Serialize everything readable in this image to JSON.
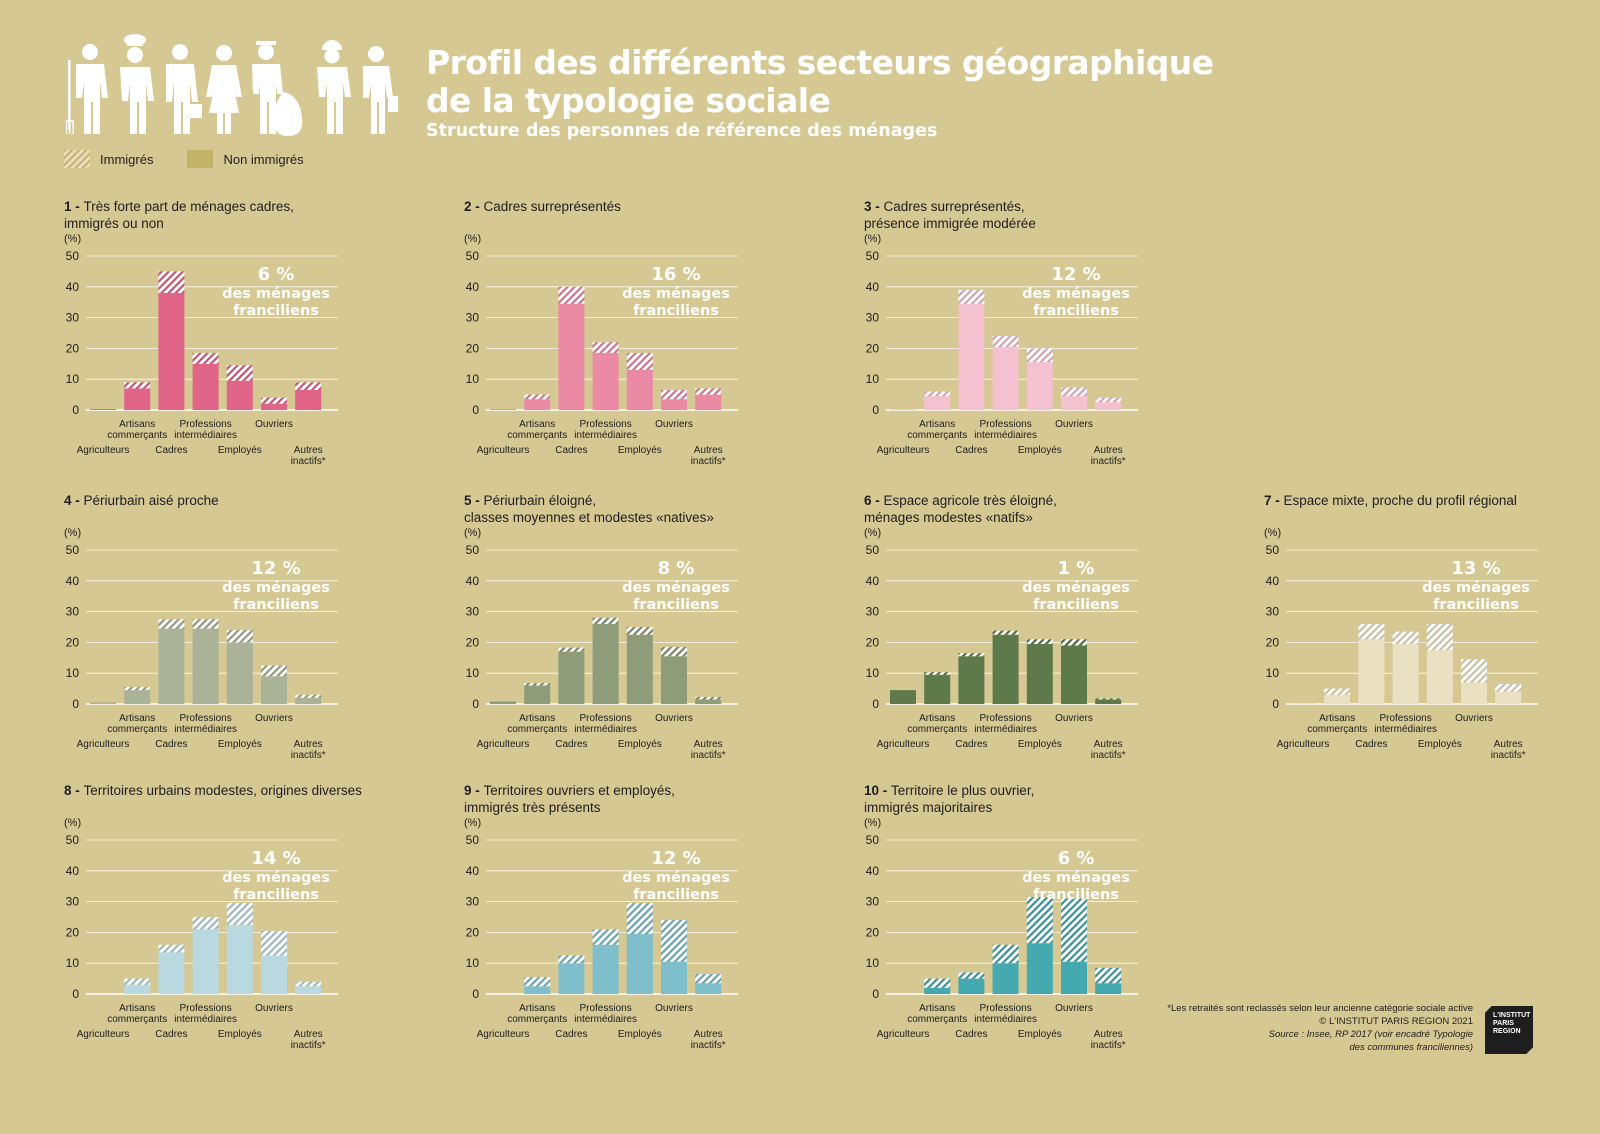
{
  "header": {
    "title_lines": [
      "Profil des différents secteurs géographique",
      "de la typologie sociale"
    ],
    "subtitle": "Structure des personnes de référence des ménages"
  },
  "legend": {
    "immigres": "Immigrés",
    "non_immigres": "Non immigrés"
  },
  "common": {
    "percent_label": "(%)",
    "share_suffix_line1": "des ménages",
    "share_suffix_line2": "franciliens"
  },
  "footer": {
    "note": "*Les retraités sont reclassés selon leur ancienne catégorie sociale active",
    "copyright": "© L'INSTITUT PARIS REGION 2021",
    "source_line1": "Source : Insee, RP 2017 (voir encadré Typologie",
    "source_line2": "des communes franciliennes)",
    "logo_lines": [
      "L'INSTITUT",
      "PARIS",
      "REGION"
    ]
  },
  "chart_data": [
    {
      "type": "bar",
      "stacked": true,
      "id": 1,
      "number": "1 -",
      "title_lines": [
        "Très forte part de ménages cadres,",
        "immigrés ou non"
      ],
      "share": "6 %",
      "color": "#e06487",
      "ylim": [
        0,
        50
      ],
      "yticks": [
        0,
        10,
        20,
        30,
        40,
        50
      ],
      "categories": [
        "Agriculteurs",
        "Artisans commerçants",
        "Cadres",
        "Professions intermédiaires",
        "Employés",
        "Ouvriers",
        "Autres inactifs*"
      ],
      "series": [
        {
          "name": "Non immigrés",
          "values": [
            0.3,
            7,
            38,
            15,
            9.5,
            2,
            6.5
          ]
        },
        {
          "name": "Immigrés",
          "values": [
            0,
            2,
            7,
            3.5,
            5,
            2,
            2.5
          ]
        }
      ]
    },
    {
      "type": "bar",
      "stacked": true,
      "id": 2,
      "number": "2 -",
      "title_lines": [
        "Cadres surreprésentés"
      ],
      "share": "16 %",
      "color": "#ea8aa5",
      "ylim": [
        0,
        50
      ],
      "yticks": [
        0,
        10,
        20,
        30,
        40,
        50
      ],
      "categories": [
        "Agriculteurs",
        "Artisans commerçants",
        "Cadres",
        "Professions intermédiaires",
        "Employés",
        "Ouvriers",
        "Autres inactifs*"
      ],
      "series": [
        {
          "name": "Non immigrés",
          "values": [
            0.3,
            3.5,
            34.5,
            18.5,
            13,
            3.5,
            5
          ]
        },
        {
          "name": "Immigrés",
          "values": [
            0,
            1.5,
            5.5,
            3.5,
            5.5,
            3,
            2
          ]
        }
      ]
    },
    {
      "type": "bar",
      "stacked": true,
      "id": 3,
      "number": "3 -",
      "title_lines": [
        "Cadres surreprésentés,",
        "présence immigrée modérée"
      ],
      "share": "12 %",
      "color": "#f4c1d0",
      "ylim": [
        0,
        50
      ],
      "yticks": [
        0,
        10,
        20,
        30,
        40,
        50
      ],
      "categories": [
        "Agriculteurs",
        "Artisans commerçants",
        "Cadres",
        "Professions intermédiaires",
        "Employés",
        "Ouvriers",
        "Autres inactifs*"
      ],
      "series": [
        {
          "name": "Non immigrés",
          "values": [
            0.3,
            4.5,
            34.5,
            20.5,
            15.5,
            4.5,
            2.5
          ]
        },
        {
          "name": "Immigrés",
          "values": [
            0,
            1.5,
            4.5,
            3.5,
            4.5,
            2.8,
            1.5
          ]
        }
      ]
    },
    {
      "type": "bar",
      "stacked": true,
      "id": 4,
      "number": "4 -",
      "title_lines": [
        "Périurbain aisé proche"
      ],
      "share": "12 %",
      "color": "#aab298",
      "ylim": [
        0,
        50
      ],
      "yticks": [
        0,
        10,
        20,
        30,
        40,
        50
      ],
      "categories": [
        "Agriculteurs",
        "Artisans commerçants",
        "Cadres",
        "Professions intermédiaires",
        "Employés",
        "Ouvriers",
        "Autres inactifs*"
      ],
      "series": [
        {
          "name": "Non immigrés",
          "values": [
            0.5,
            4.5,
            24.5,
            24.5,
            20,
            9,
            2
          ]
        },
        {
          "name": "Immigrés",
          "values": [
            0,
            1,
            3,
            3,
            4,
            3.5,
            1
          ]
        }
      ]
    },
    {
      "type": "bar",
      "stacked": true,
      "id": 5,
      "number": "5 -",
      "title_lines": [
        "Périurbain éloigné,",
        "classes moyennes et modestes «natives»"
      ],
      "share": "8 %",
      "color": "#8e9c7a",
      "ylim": [
        0,
        50
      ],
      "yticks": [
        0,
        10,
        20,
        30,
        40,
        50
      ],
      "categories": [
        "Agriculteurs",
        "Artisans commerçants",
        "Cadres",
        "Professions intermédiaires",
        "Employés",
        "Ouvriers",
        "Autres inactifs*"
      ],
      "series": [
        {
          "name": "Non immigrés",
          "values": [
            0.8,
            6,
            17,
            26,
            22.5,
            15.5,
            1.5
          ]
        },
        {
          "name": "Immigrés",
          "values": [
            0,
            0.8,
            1.3,
            2,
            2.5,
            3,
            0.8
          ]
        }
      ]
    },
    {
      "type": "bar",
      "stacked": true,
      "id": 6,
      "number": "6 -",
      "title_lines": [
        "Espace agricole très éloigné,",
        "ménages modestes «natifs»"
      ],
      "share": "1 %",
      "color": "#5e7a4a",
      "ylim": [
        0,
        50
      ],
      "yticks": [
        0,
        10,
        20,
        30,
        40,
        50
      ],
      "categories": [
        "Agriculteurs",
        "Artisans commerçants",
        "Cadres",
        "Professions intermédiaires",
        "Employés",
        "Ouvriers",
        "Autres inactifs*"
      ],
      "series": [
        {
          "name": "Non immigrés",
          "values": [
            4.5,
            9.5,
            15.5,
            22.5,
            19.5,
            19,
            1.5
          ]
        },
        {
          "name": "Immigrés",
          "values": [
            0,
            0.8,
            1,
            1.3,
            1.5,
            2,
            0.3
          ]
        }
      ]
    },
    {
      "type": "bar",
      "stacked": true,
      "id": 7,
      "number": "7 -",
      "title_lines": [
        "Espace mixte, proche du profil régional"
      ],
      "share": "13 %",
      "color": "#eae1c3",
      "ylim": [
        0,
        50
      ],
      "yticks": [
        0,
        10,
        20,
        30,
        40,
        50
      ],
      "categories": [
        "Agriculteurs",
        "Artisans commerçants",
        "Cadres",
        "Professions intermédiaires",
        "Employés",
        "Ouvriers",
        "Autres inactifs*"
      ],
      "series": [
        {
          "name": "Non immigrés",
          "values": [
            0.2,
            3,
            21,
            19.5,
            17.5,
            7,
            4
          ]
        },
        {
          "name": "Immigrés",
          "values": [
            0,
            2,
            5,
            4,
            8.5,
            7.5,
            2.5
          ]
        }
      ]
    },
    {
      "type": "bar",
      "stacked": true,
      "id": 8,
      "number": "8 -",
      "title_lines": [
        "Territoires urbains modestes, origines diverses"
      ],
      "share": "14 %",
      "color": "#b9d8df",
      "ylim": [
        0,
        50
      ],
      "yticks": [
        0,
        10,
        20,
        30,
        40,
        50
      ],
      "categories": [
        "Agriculteurs",
        "Artisans commerçants",
        "Cadres",
        "Professions intermédiaires",
        "Employés",
        "Ouvriers",
        "Autres inactifs*"
      ],
      "series": [
        {
          "name": "Non immigrés",
          "values": [
            0,
            3,
            13.5,
            21,
            22.5,
            12.5,
            2.5
          ]
        },
        {
          "name": "Immigrés",
          "values": [
            0,
            2,
            2.5,
            4,
            7,
            8,
            1.5
          ]
        }
      ]
    },
    {
      "type": "bar",
      "stacked": true,
      "id": 9,
      "number": "9 -",
      "title_lines": [
        "Territoires ouvriers et employés,",
        "immigrés très présents"
      ],
      "share": "12 %",
      "color": "#7fbfcb",
      "ylim": [
        0,
        50
      ],
      "yticks": [
        0,
        10,
        20,
        30,
        40,
        50
      ],
      "categories": [
        "Agriculteurs",
        "Artisans commerçants",
        "Cadres",
        "Professions intermédiaires",
        "Employés",
        "Ouvriers",
        "Autres inactifs*"
      ],
      "series": [
        {
          "name": "Non immigrés",
          "values": [
            0,
            2.5,
            10,
            16,
            19.5,
            10.5,
            3.5
          ]
        },
        {
          "name": "Immigrés",
          "values": [
            0,
            3,
            2.5,
            5,
            10,
            13.5,
            3
          ]
        }
      ]
    },
    {
      "type": "bar",
      "stacked": true,
      "id": 10,
      "number": "10 -",
      "title_lines": [
        "Territoire le plus ouvrier,",
        "immigrés majoritaires"
      ],
      "share": "6 %",
      "color": "#45a9b0",
      "ylim": [
        0,
        50
      ],
      "yticks": [
        0,
        10,
        20,
        30,
        40,
        50
      ],
      "categories": [
        "Agriculteurs",
        "Artisans commerçants",
        "Cadres",
        "Professions intermédiaires",
        "Employés",
        "Ouvriers",
        "Autres inactifs*"
      ],
      "series": [
        {
          "name": "Non immigrés",
          "values": [
            0,
            2,
            5,
            10,
            16.5,
            10.5,
            3.5
          ]
        },
        {
          "name": "Immigrés",
          "values": [
            0,
            3,
            2,
            6,
            15,
            20.5,
            5
          ]
        }
      ]
    }
  ]
}
